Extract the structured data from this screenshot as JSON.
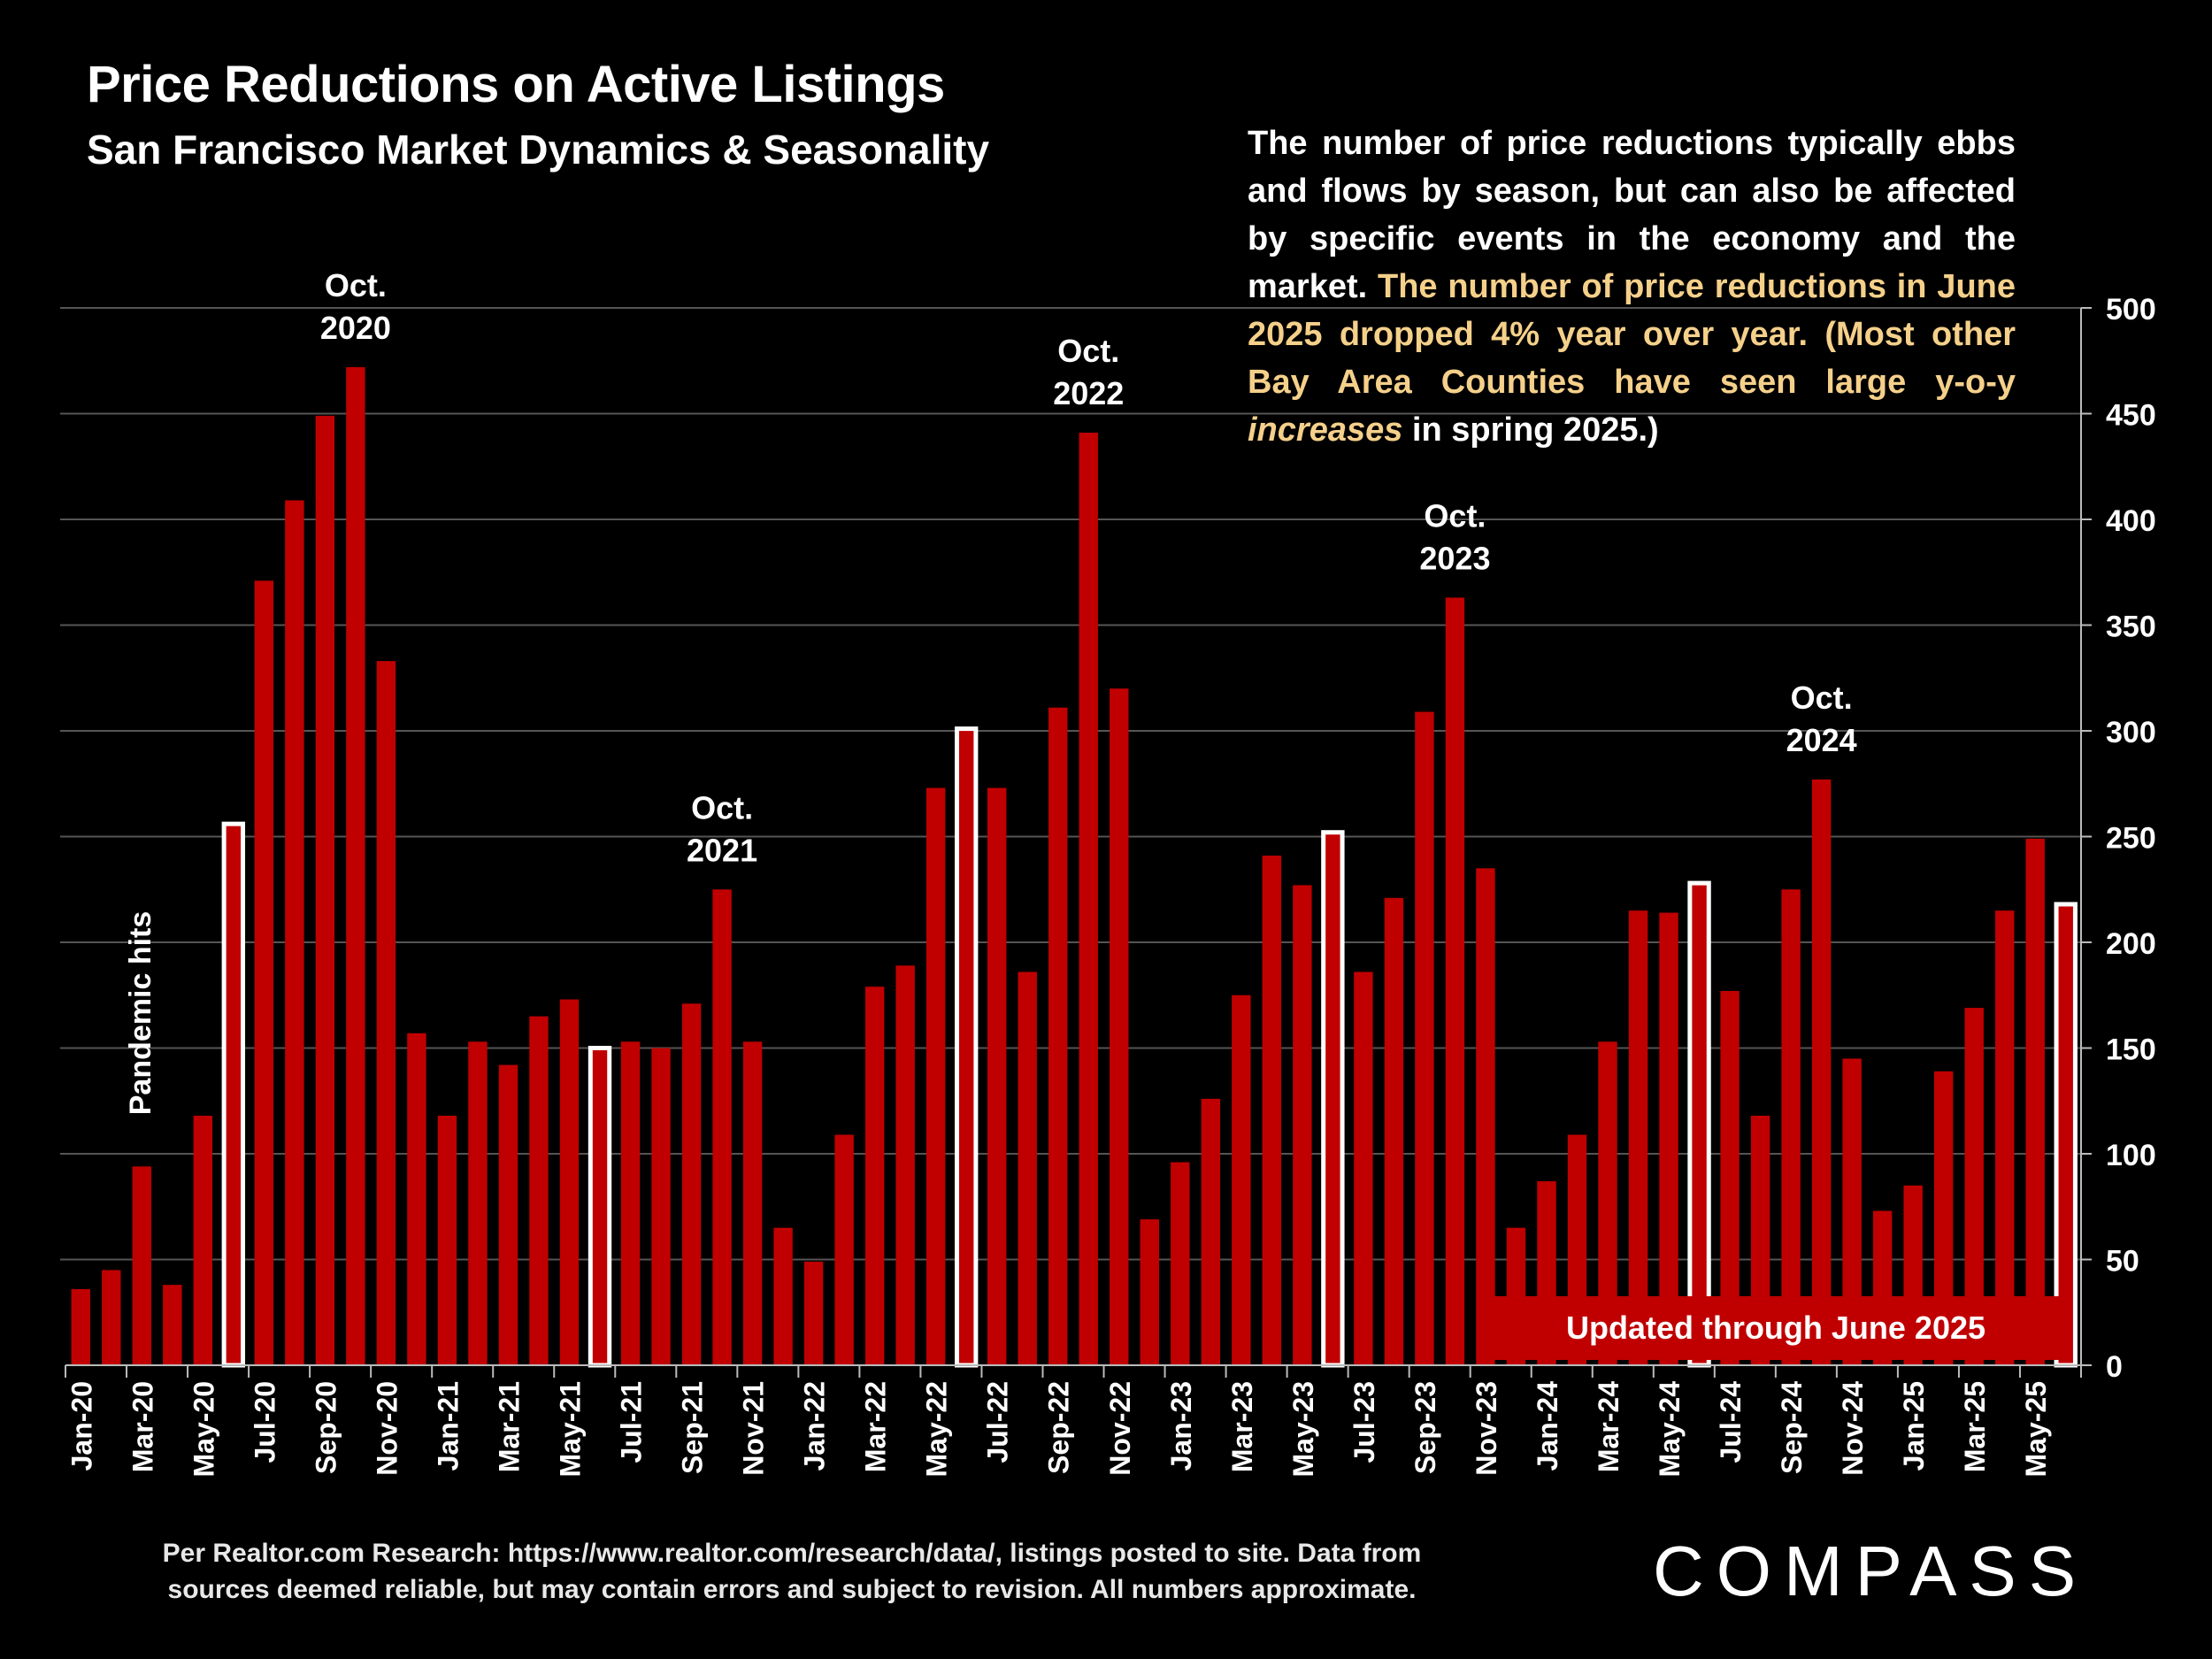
{
  "header": {
    "title": "Price Reductions on Active Listings",
    "subtitle": "San Francisco Market Dynamics & Seasonality"
  },
  "commentary": {
    "part1": "The number of price reductions typically ebbs and flows by season, but can also be affected by specific events in the economy and the market. ",
    "part2": "The number of price reductions in June 2025 dropped 4% year over year. (Most other Bay Area Counties have seen large y-o-y ",
    "part3_italic": "increases",
    "part4": " in spring 2025.)"
  },
  "footer": {
    "source": "Per Realtor.com Research:  https://www.realtor.com/research/data/, listings posted to site. Data from sources deemed reliable, but may contain errors and subject to revision. All numbers approximate.",
    "logo": "COMPASS"
  },
  "colors": {
    "bar": "#c00000",
    "highlight_bar": "#c00000",
    "highlight_outline": "#ffffff",
    "annotation_highlight": "#f5d08a",
    "grid": "#555555",
    "background": "#000000"
  },
  "chart_data": {
    "type": "bar",
    "title": "Price Reductions on Active Listings",
    "xlabel": "",
    "ylabel": "",
    "ylim": [
      0,
      500
    ],
    "yticks": [
      0,
      50,
      100,
      150,
      200,
      250,
      300,
      350,
      400,
      450,
      500
    ],
    "y_axis_side": "right",
    "grid": true,
    "categories": [
      "Jan-20",
      "Feb-20",
      "Mar-20",
      "Apr-20",
      "May-20",
      "Jun-20",
      "Jul-20",
      "Aug-20",
      "Sep-20",
      "Oct-20",
      "Nov-20",
      "Dec-20",
      "Jan-21",
      "Feb-21",
      "Mar-21",
      "Apr-21",
      "May-21",
      "Jun-21",
      "Jul-21",
      "Aug-21",
      "Sep-21",
      "Oct-21",
      "Nov-21",
      "Dec-21",
      "Jan-22",
      "Feb-22",
      "Mar-22",
      "Apr-22",
      "May-22",
      "Jun-22",
      "Jul-22",
      "Aug-22",
      "Sep-22",
      "Oct-22",
      "Nov-22",
      "Dec-22",
      "Jan-23",
      "Feb-23",
      "Mar-23",
      "Apr-23",
      "May-23",
      "Jun-23",
      "Jul-23",
      "Aug-23",
      "Sep-23",
      "Oct-23",
      "Nov-23",
      "Dec-23",
      "Jan-24",
      "Feb-24",
      "Mar-24",
      "Apr-24",
      "May-24",
      "Jun-24",
      "Jul-24",
      "Aug-24",
      "Sep-24",
      "Oct-24",
      "Nov-24",
      "Dec-24",
      "Jan-25",
      "Feb-25",
      "Mar-25",
      "Apr-25",
      "May-25",
      "Jun-25"
    ],
    "tick_labels": [
      "Jan-20",
      "Mar-20",
      "May-20",
      "Jul-20",
      "Sep-20",
      "Nov-20",
      "Jan-21",
      "Mar-21",
      "May-21",
      "Jul-21",
      "Sep-21",
      "Nov-21",
      "Jan-22",
      "Mar-22",
      "May-22",
      "Jul-22",
      "Sep-22",
      "Nov-22",
      "Jan-23",
      "Mar-23",
      "May-23",
      "Jul-23",
      "Sep-23",
      "Nov-23",
      "Jan-24",
      "Mar-24",
      "May-24",
      "Jul-24",
      "Sep-24",
      "Nov-24",
      "Jan-25",
      "Mar-25",
      "May-25"
    ],
    "values": [
      36,
      45,
      94,
      38,
      118,
      256,
      371,
      409,
      449,
      472,
      333,
      157,
      118,
      153,
      142,
      165,
      173,
      150,
      153,
      150,
      171,
      225,
      153,
      65,
      49,
      109,
      179,
      189,
      273,
      301,
      273,
      186,
      311,
      441,
      320,
      69,
      96,
      126,
      175,
      241,
      227,
      252,
      186,
      221,
      309,
      363,
      235,
      65,
      87,
      109,
      153,
      215,
      214,
      228,
      177,
      118,
      225,
      277,
      145,
      73,
      85,
      139,
      169,
      215,
      249,
      218
    ],
    "highlighted": [
      "Jun-20",
      "Jun-21",
      "Jun-22",
      "Jun-23",
      "Jun-24",
      "Jun-25"
    ],
    "annotations": [
      {
        "category": "Oct-20",
        "line1": "Oct.",
        "line2": "2020"
      },
      {
        "category": "Oct-21",
        "line1": "Oct.",
        "line2": "2021"
      },
      {
        "category": "Oct-22",
        "line1": "Oct.",
        "line2": "2022"
      },
      {
        "category": "Oct-23",
        "line1": "Oct.",
        "line2": "2023"
      },
      {
        "category": "Oct-24",
        "line1": "Oct.",
        "line2": "2024"
      }
    ],
    "pandemic_label": "Pandemic hits",
    "updated_label": "Updated through June 2025"
  }
}
